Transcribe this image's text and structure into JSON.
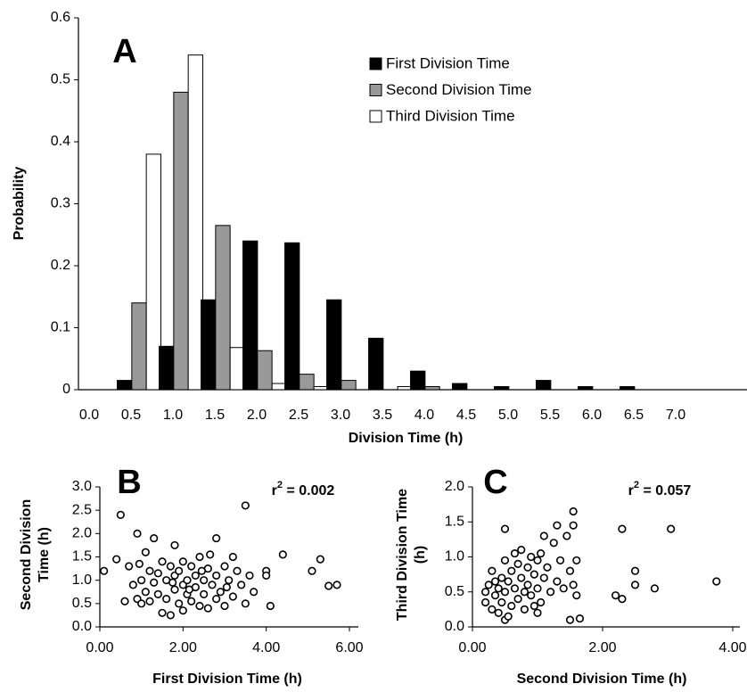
{
  "chart_data": [
    {
      "type": "bar",
      "label": "A",
      "xlabel": "Division Time (h)",
      "ylabel": [
        "Probability"
      ],
      "categories": [
        "0.0",
        "0.5",
        "1.0",
        "1.5",
        "2.0",
        "2.5",
        "3.0",
        "3.5",
        "4.0",
        "4.5",
        "5.0",
        "5.5",
        "6.0",
        "6.5",
        "7.0"
      ],
      "series": [
        {
          "name": "First Division Time",
          "color": "#000000",
          "values": [
            0,
            0.015,
            0.07,
            0.145,
            0.24,
            0.237,
            0.145,
            0.083,
            0.03,
            0.01,
            0.005,
            0.015,
            0.005,
            0.005,
            0
          ]
        },
        {
          "name": "Second Division Time",
          "color": "#999999",
          "values": [
            0,
            0.14,
            0.48,
            0.265,
            0.063,
            0.025,
            0.015,
            0,
            0.005,
            0,
            0,
            0,
            0,
            0,
            0
          ]
        },
        {
          "name": "Third Division Time",
          "color": "#ffffff",
          "values": [
            0,
            0.38,
            0.54,
            0.068,
            0.01,
            0.005,
            0,
            0.005,
            0,
            0,
            0,
            0,
            0,
            0,
            0
          ]
        }
      ],
      "ylim": [
        0,
        0.6
      ],
      "yticks": [
        0,
        0.1,
        0.2,
        0.3,
        0.4,
        0.5,
        0.6
      ],
      "legend": "upper right"
    },
    {
      "type": "scatter",
      "label": "B",
      "xlabel": "First Division Time (h)",
      "ylabel": [
        "Second Division",
        "Time (h)"
      ],
      "annotation": {
        "text": "r",
        "superscript": "2",
        "suffix": " = 0.002"
      },
      "x": [
        0.1,
        0.4,
        0.5,
        0.9,
        1.3,
        1.8,
        2.8,
        3.5,
        4.0,
        4.0,
        4.4,
        5.1,
        5.3,
        5.5,
        5.7,
        4.1,
        3.7,
        0.6,
        0.7,
        0.8,
        0.9,
        1.0,
        1.0,
        1.1,
        1.1,
        1.2,
        1.2,
        1.3,
        1.4,
        1.5,
        1.5,
        1.6,
        1.6,
        1.7,
        1.7,
        1.8,
        1.8,
        1.9,
        1.9,
        2.0,
        2.0,
        2.0,
        2.1,
        2.1,
        2.2,
        2.2,
        2.3,
        2.3,
        2.4,
        2.4,
        2.5,
        2.5,
        2.6,
        2.6,
        2.7,
        2.8,
        2.8,
        2.9,
        3.0,
        3.0,
        3.1,
        3.2,
        3.2,
        3.3,
        3.4,
        3.5,
        3.6,
        1.4,
        1.75,
        2.15,
        2.45,
        0.95,
        2.65,
        3.05
      ],
      "y": [
        1.2,
        1.45,
        2.4,
        2.0,
        1.9,
        1.75,
        1.9,
        2.6,
        1.2,
        1.1,
        1.55,
        1.2,
        1.45,
        0.88,
        0.9,
        0.45,
        0.75,
        0.55,
        1.3,
        0.9,
        0.6,
        1.0,
        0.5,
        1.6,
        0.75,
        1.2,
        0.55,
        0.95,
        0.7,
        1.4,
        0.3,
        1.0,
        0.6,
        1.3,
        0.25,
        0.8,
        1.1,
        0.5,
        1.2,
        0.9,
        1.4,
        0.35,
        1.0,
        0.7,
        1.3,
        0.55,
        1.1,
        0.85,
        0.45,
        1.5,
        1.0,
        0.7,
        1.25,
        0.4,
        0.9,
        1.1,
        0.6,
        0.75,
        1.3,
        0.45,
        1.0,
        0.65,
        1.5,
        1.2,
        0.9,
        0.5,
        1.1,
        1.15,
        0.95,
        0.8,
        1.2,
        1.35,
        1.55,
        0.85
      ],
      "xlim": [
        0,
        6
      ],
      "xticks": [
        {
          "value": 0,
          "label": "0.00"
        },
        {
          "value": 2,
          "label": "2.00"
        },
        {
          "value": 4,
          "label": "4.00"
        },
        {
          "value": 6,
          "label": "6.00"
        }
      ],
      "ylim": [
        0,
        3
      ],
      "yticks": [
        {
          "value": 0,
          "label": "0.0"
        },
        0.5,
        {
          "value": 1,
          "label": "1.0"
        },
        1.5,
        {
          "value": 2,
          "label": "2.0"
        },
        2.5,
        {
          "value": 3,
          "label": "3.0"
        }
      ]
    },
    {
      "type": "scatter",
      "label": "C",
      "xlabel": "Second Division Time (h)",
      "ylabel": [
        "Third Division Time",
        "(h)"
      ],
      "annotation": {
        "text": "r",
        "superscript": "2",
        "suffix": " = 0.057"
      },
      "x": [
        2.3,
        3.05,
        3.75,
        2.2,
        2.3,
        2.5,
        2.5,
        2.8,
        1.5,
        1.65,
        0.5,
        1.3,
        1.55,
        1.55,
        0.2,
        0.2,
        0.25,
        0.3,
        0.3,
        0.35,
        0.4,
        0.4,
        0.45,
        0.45,
        0.5,
        0.5,
        0.5,
        0.55,
        0.6,
        0.6,
        0.65,
        0.65,
        0.7,
        0.7,
        0.75,
        0.75,
        0.8,
        0.8,
        0.85,
        0.85,
        0.9,
        0.9,
        0.95,
        1.0,
        1.0,
        1.05,
        1.05,
        1.1,
        1.15,
        1.2,
        1.25,
        1.3,
        1.35,
        1.4,
        1.45,
        1.5,
        1.55,
        1.6,
        1.6,
        1.0,
        0.55,
        1.1,
        0.35,
        0.95
      ],
      "y": [
        1.4,
        1.4,
        0.65,
        0.45,
        0.4,
        0.6,
        0.8,
        0.55,
        0.1,
        0.12,
        1.4,
        1.45,
        1.65,
        1.45,
        0.5,
        0.35,
        0.6,
        0.25,
        0.8,
        0.45,
        0.55,
        0.2,
        0.7,
        0.35,
        0.95,
        0.5,
        0.1,
        0.65,
        0.3,
        0.8,
        1.05,
        0.55,
        0.4,
        0.9,
        0.7,
        1.1,
        0.5,
        0.25,
        0.85,
        0.6,
        1.0,
        0.45,
        0.75,
        0.55,
        0.95,
        0.35,
        1.05,
        0.7,
        0.85,
        0.5,
        1.2,
        0.65,
        0.95,
        0.55,
        1.3,
        0.8,
        0.6,
        0.45,
        0.95,
        0.2,
        0.15,
        1.3,
        0.65,
        0.3
      ],
      "xlim": [
        0,
        4
      ],
      "xticks": [
        {
          "value": 0,
          "label": "0.00"
        },
        {
          "value": 2,
          "label": "2.00"
        },
        {
          "value": 4,
          "label": "4.00"
        }
      ],
      "ylim": [
        0,
        2
      ],
      "yticks": [
        {
          "value": 0,
          "label": "0.0"
        },
        0.5,
        {
          "value": 1,
          "label": "1.0"
        },
        1.5,
        {
          "value": 2,
          "label": "2.0"
        }
      ]
    }
  ]
}
